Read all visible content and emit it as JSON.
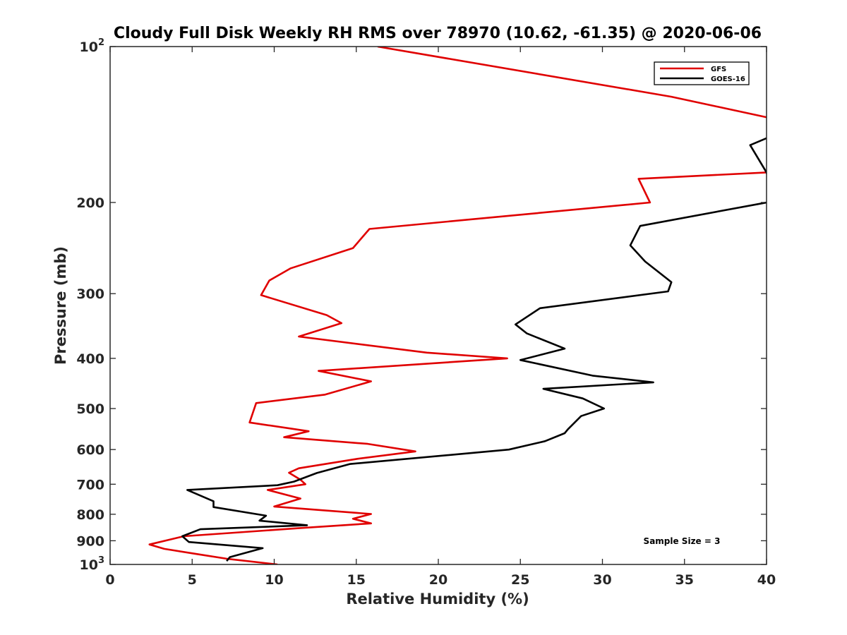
{
  "chart_data": {
    "type": "line",
    "title": "Cloudy Full Disk Weekly RH RMS over 78970 (10.62, -61.35) @ 2020-06-06",
    "xlabel": "Relative Humidity (%)",
    "ylabel": "Pressure (mb)",
    "xlim": [
      0,
      40
    ],
    "ylim": [
      100,
      1000
    ],
    "yscale": "log",
    "y_reversed": true,
    "grid": false,
    "legend_position": "top-right",
    "x_ticks": [
      "0",
      "5",
      "10",
      "15",
      "20",
      "25",
      "30",
      "35",
      "40"
    ],
    "y_ticks": [
      {
        "value": 100,
        "base": "10",
        "exp": "2"
      },
      {
        "value": 200,
        "label": "200"
      },
      {
        "value": 300,
        "label": "300"
      },
      {
        "value": 400,
        "label": "400"
      },
      {
        "value": 500,
        "label": "500"
      },
      {
        "value": 600,
        "label": "600"
      },
      {
        "value": 700,
        "label": "700"
      },
      {
        "value": 800,
        "label": "800"
      },
      {
        "value": 900,
        "label": "900"
      },
      {
        "value": 1000,
        "base": "10",
        "exp": "3"
      }
    ],
    "annotation": "Sample Size = 3",
    "series": [
      {
        "name": "GFS",
        "color": "#e00000",
        "points": [
          [
            16.3,
            100
          ],
          [
            34.2,
            125
          ],
          [
            40.5,
            138
          ],
          [
            40.5,
            170
          ],
          [
            40.0,
            175
          ],
          [
            32.2,
            180
          ],
          [
            32.9,
            200
          ],
          [
            15.8,
            225
          ],
          [
            14.8,
            245
          ],
          [
            11.0,
            268
          ],
          [
            9.7,
            283
          ],
          [
            9.2,
            302
          ],
          [
            13.2,
            330
          ],
          [
            14.1,
            342
          ],
          [
            11.5,
            363
          ],
          [
            19.3,
            390
          ],
          [
            24.2,
            400
          ],
          [
            12.7,
            423
          ],
          [
            15.9,
            443
          ],
          [
            13.1,
            470
          ],
          [
            8.9,
            488
          ],
          [
            8.5,
            532
          ],
          [
            12.1,
            553
          ],
          [
            10.6,
            568
          ],
          [
            15.7,
            585
          ],
          [
            18.6,
            605
          ],
          [
            15.1,
            625
          ],
          [
            11.5,
            652
          ],
          [
            10.9,
            665
          ],
          [
            11.6,
            686
          ],
          [
            11.9,
            700
          ],
          [
            9.6,
            718
          ],
          [
            11.6,
            746
          ],
          [
            10.0,
            773
          ],
          [
            15.9,
            799
          ],
          [
            14.8,
            816
          ],
          [
            15.9,
            833
          ],
          [
            11.5,
            851
          ],
          [
            4.5,
            882
          ],
          [
            2.4,
            915
          ],
          [
            3.3,
            933
          ],
          [
            5.3,
            955
          ],
          [
            7.1,
            975
          ],
          [
            10.2,
            1000
          ]
        ]
      },
      {
        "name": "GOES-16",
        "color": "#000000",
        "points": [
          [
            40.5,
            148
          ],
          [
            39.0,
            155
          ],
          [
            40.0,
            175
          ],
          [
            40.5,
            198
          ],
          [
            40.0,
            200
          ],
          [
            32.3,
            222
          ],
          [
            31.7,
            242
          ],
          [
            32.6,
            260
          ],
          [
            34.2,
            285
          ],
          [
            34.0,
            297
          ],
          [
            26.2,
            320
          ],
          [
            24.7,
            344
          ],
          [
            25.4,
            358
          ],
          [
            27.7,
            383
          ],
          [
            25.0,
            403
          ],
          [
            29.4,
            432
          ],
          [
            33.1,
            445
          ],
          [
            26.4,
            458
          ],
          [
            28.8,
            478
          ],
          [
            30.1,
            500
          ],
          [
            28.7,
            517
          ],
          [
            27.9,
            548
          ],
          [
            27.7,
            558
          ],
          [
            26.5,
            578
          ],
          [
            24.3,
            600
          ],
          [
            14.6,
            640
          ],
          [
            12.6,
            666
          ],
          [
            11.2,
            692
          ],
          [
            10.2,
            703
          ],
          [
            4.7,
            718
          ],
          [
            6.3,
            755
          ],
          [
            6.3,
            775
          ],
          [
            9.5,
            805
          ],
          [
            9.1,
            823
          ],
          [
            12.0,
            840
          ],
          [
            5.5,
            855
          ],
          [
            4.4,
            882
          ],
          [
            4.8,
            905
          ],
          [
            9.3,
            930
          ],
          [
            7.3,
            968
          ],
          [
            7.1,
            985
          ]
        ]
      }
    ]
  }
}
